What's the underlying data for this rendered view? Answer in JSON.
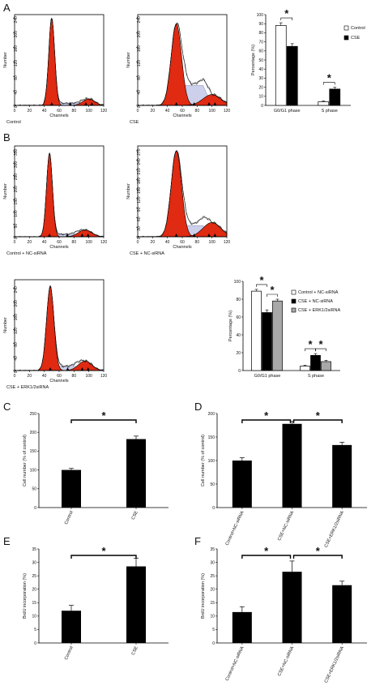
{
  "chart_data": [
    {
      "type": "histogram",
      "panel": "A",
      "caption": "Control",
      "xlabel": "Channels",
      "ylabel": "Number",
      "xticks": [
        "0",
        "20",
        "40",
        "60",
        "80",
        "100",
        "120"
      ],
      "yticks": [
        "0",
        "40",
        "80",
        "120",
        "160",
        "200",
        "240"
      ],
      "xlim": [
        0,
        120
      ],
      "ylim": [
        0,
        250
      ],
      "g1": {
        "mean": 50,
        "sd": 4,
        "height": 240
      },
      "g2": {
        "mean": 100,
        "sd": 8,
        "height": 18
      },
      "s": {
        "height": 6
      }
    },
    {
      "type": "histogram",
      "panel": "A",
      "caption": "CSE",
      "xlabel": "Channels",
      "ylabel": "Number",
      "xticks": [
        "0",
        "20",
        "40",
        "60",
        "80",
        "100",
        "120"
      ],
      "yticks": [
        "0",
        "40",
        "80",
        "120",
        "160",
        "200",
        "240"
      ],
      "xlim": [
        0,
        120
      ],
      "ylim": [
        0,
        250
      ],
      "g1": {
        "mean": 52,
        "sd": 7,
        "height": 225
      },
      "g2": {
        "mean": 100,
        "sd": 12,
        "height": 30
      },
      "s": {
        "height": 55
      }
    },
    {
      "type": "bar",
      "panel": "A",
      "ylabel": "Percentage (%)",
      "categories": [
        "G0/G1 phase",
        "S phase"
      ],
      "yticks": [
        "0",
        "10",
        "20",
        "30",
        "40",
        "50",
        "60",
        "70",
        "80",
        "90",
        "100"
      ],
      "ylim": [
        0,
        100
      ],
      "series": [
        {
          "name": "Control",
          "color": "#ffffff",
          "values": [
            88,
            4
          ],
          "errors": [
            3,
            1
          ]
        },
        {
          "name": "CSE",
          "color": "#000000",
          "values": [
            65,
            18
          ],
          "errors": [
            3,
            2
          ]
        }
      ],
      "significance": [
        "*",
        "*"
      ]
    },
    {
      "type": "histogram",
      "panel": "B",
      "caption": "Control + NC-siRNA",
      "xlabel": "Channels",
      "ylabel": "Number",
      "xticks": [
        "0",
        "20",
        "40",
        "60",
        "80",
        "100",
        "120"
      ],
      "yticks": [
        "0",
        "50",
        "100",
        "150",
        "200",
        "250",
        "300",
        "350"
      ],
      "xlim": [
        0,
        120
      ],
      "ylim": [
        0,
        370
      ],
      "g1": {
        "mean": 47,
        "sd": 4,
        "height": 340
      },
      "g2": {
        "mean": 95,
        "sd": 9,
        "height": 28
      },
      "s": {
        "height": 10
      }
    },
    {
      "type": "histogram",
      "panel": "B",
      "caption": "CSE + NC-siRNA",
      "xlabel": "Channels",
      "ylabel": "Number",
      "xticks": [
        "0",
        "20",
        "40",
        "60",
        "80",
        "100",
        "120"
      ],
      "yticks": [
        "0",
        "30",
        "60",
        "90",
        "120",
        "150",
        "180",
        "210",
        "240",
        "270"
      ],
      "xlim": [
        0,
        120
      ],
      "ylim": [
        0,
        285
      ],
      "g1": {
        "mean": 52,
        "sd": 7,
        "height": 270
      },
      "g2": {
        "mean": 100,
        "sd": 12,
        "height": 45
      },
      "s": {
        "height": 35
      }
    },
    {
      "type": "histogram",
      "panel": "B",
      "caption": "CSE + ERK1/2siRNA",
      "xlabel": "Channels",
      "ylabel": "Number",
      "xticks": [
        "0",
        "20",
        "40",
        "60",
        "80",
        "100",
        "120"
      ],
      "yticks": [
        "0",
        "40",
        "80",
        "120",
        "160",
        "200",
        "240"
      ],
      "xlim": [
        0,
        120
      ],
      "ylim": [
        0,
        265
      ],
      "g1": {
        "mean": 48,
        "sd": 5,
        "height": 245
      },
      "g2": {
        "mean": 95,
        "sd": 9,
        "height": 28
      },
      "s": {
        "height": 12
      }
    },
    {
      "type": "bar",
      "panel": "B",
      "ylabel": "Percentage (%)",
      "categories": [
        "G0/G1 phase",
        "S phase"
      ],
      "yticks": [
        "0",
        "20",
        "40",
        "60",
        "80",
        "100"
      ],
      "ylim": [
        0,
        100
      ],
      "series": [
        {
          "name": "Control + NC-siRNA",
          "color": "#ffffff",
          "values": [
            89,
            5
          ],
          "errors": [
            2,
            1
          ]
        },
        {
          "name": "CSE + NC-siRNA",
          "color": "#000000",
          "values": [
            65,
            17
          ],
          "errors": [
            3,
            2
          ]
        },
        {
          "name": "CSE + ERK1/2siRNA",
          "color": "#a8a8a8",
          "values": [
            78,
            10
          ],
          "errors": [
            2,
            1.5
          ]
        }
      ],
      "significance": [
        "*",
        "*",
        "*",
        "*"
      ]
    },
    {
      "type": "bar",
      "panel": "C",
      "ylabel": "Cell number (% of control)",
      "categories": [
        "Control",
        "CSE"
      ],
      "values": [
        100,
        182
      ],
      "errors": [
        4,
        8
      ],
      "yticks": [
        "0",
        "50",
        "100",
        "150",
        "200",
        "250"
      ],
      "ylim": [
        0,
        250
      ],
      "significance": [
        "*"
      ]
    },
    {
      "type": "bar",
      "panel": "D",
      "ylabel": "Cell number (% of control)",
      "categories": [
        "Control+NC-siRNA",
        "CSE+NC-siRNA",
        "CSE+ERK1/2siRNA"
      ],
      "values": [
        100,
        178,
        133
      ],
      "errors": [
        6,
        5,
        6
      ],
      "yticks": [
        "0",
        "50",
        "100",
        "150",
        "200"
      ],
      "ylim": [
        0,
        200
      ],
      "significance": [
        "*",
        "*"
      ]
    },
    {
      "type": "bar",
      "panel": "E",
      "ylabel": "BrdU incorporation (%)",
      "categories": [
        "Control",
        "CSE"
      ],
      "values": [
        12,
        28.5
      ],
      "errors": [
        2,
        3
      ],
      "yticks": [
        "0",
        "5",
        "10",
        "15",
        "20",
        "25",
        "30",
        "35"
      ],
      "ylim": [
        0,
        35
      ],
      "significance": [
        "*"
      ]
    },
    {
      "type": "bar",
      "panel": "F",
      "ylabel": "BrdU incorporation (%)",
      "categories": [
        "Control+NC-siRNA",
        "CSE+NC-siRNA",
        "CSE+ERK1/2siRNA"
      ],
      "values": [
        11.5,
        26.5,
        21.5
      ],
      "errors": [
        2,
        4,
        1.5
      ],
      "yticks": [
        "0",
        "5",
        "10",
        "15",
        "20",
        "25",
        "30",
        "35"
      ],
      "ylim": [
        0,
        35
      ],
      "significance": [
        "*",
        "*"
      ]
    }
  ],
  "panel_letters": [
    "A",
    "B",
    "C",
    "D",
    "E",
    "F"
  ],
  "colors": {
    "peak_fill": "#e02a12",
    "s_fill": "#cdd0ea",
    "bar_black": "#000000",
    "bar_grey": "#a8a8a8"
  }
}
